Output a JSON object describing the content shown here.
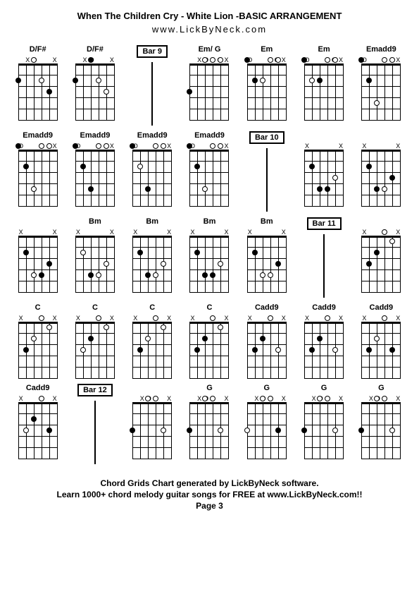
{
  "header": {
    "title": "When The Children Cry - White Lion -BASIC ARRANGEMENT",
    "website": "www.LickByNeck.com"
  },
  "footer": {
    "line1": "Chord Grids Chart generated by LickByNeck software.",
    "line2": "Learn 1000+ chord melody guitar songs for FREE at www.LickByNeck.com!!",
    "page": "Page 3"
  },
  "diagram_config": {
    "width": 56,
    "height": 80,
    "num_frets": 5,
    "num_strings": 6,
    "dot_size": 8,
    "colors": {
      "line": "#000000",
      "dot_fill": "#000000",
      "dot_open_fill": "#ffffff",
      "dot_open_border": "#000000",
      "background": "#ffffff"
    }
  },
  "chords": [
    {
      "type": "chord",
      "name": "D/F#",
      "mutes": [
        "",
        "X",
        "O",
        "",
        "",
        "X"
      ],
      "dots": [
        {
          "s": 0,
          "f": 2,
          "open": false
        },
        {
          "s": 2,
          "f": 0,
          "open": true
        },
        {
          "s": 3,
          "f": 2,
          "open": true
        },
        {
          "s": 4,
          "f": 3,
          "open": false
        }
      ]
    },
    {
      "type": "chord",
      "name": "D/F#",
      "mutes": [
        "",
        "X",
        "O",
        "",
        "",
        "X"
      ],
      "dots": [
        {
          "s": 0,
          "f": 2,
          "open": false
        },
        {
          "s": 2,
          "f": 0,
          "open": false
        },
        {
          "s": 3,
          "f": 2,
          "open": true
        },
        {
          "s": 4,
          "f": 3,
          "open": true
        }
      ]
    },
    {
      "type": "bar",
      "label": "Bar 9"
    },
    {
      "type": "chord",
      "name": "Em/ G",
      "mutes": [
        "",
        "X",
        "O",
        "O",
        "O",
        "X"
      ],
      "dots": [
        {
          "s": 0,
          "f": 3,
          "open": false
        },
        {
          "s": 2,
          "f": 0,
          "open": true
        },
        {
          "s": 3,
          "f": 0,
          "open": true
        },
        {
          "s": 4,
          "f": 0,
          "open": true
        }
      ]
    },
    {
      "type": "chord",
      "name": "Em",
      "mutes": [
        "O",
        "",
        "",
        "O",
        "O",
        "X"
      ],
      "dots": [
        {
          "s": 0,
          "f": 0,
          "open": false
        },
        {
          "s": 1,
          "f": 2,
          "open": false
        },
        {
          "s": 2,
          "f": 2,
          "open": true
        },
        {
          "s": 3,
          "f": 0,
          "open": true
        },
        {
          "s": 4,
          "f": 0,
          "open": true
        }
      ]
    },
    {
      "type": "chord",
      "name": "Em",
      "mutes": [
        "O",
        "",
        "",
        "O",
        "O",
        "X"
      ],
      "dots": [
        {
          "s": 0,
          "f": 0,
          "open": false
        },
        {
          "s": 1,
          "f": 2,
          "open": true
        },
        {
          "s": 2,
          "f": 2,
          "open": false
        },
        {
          "s": 3,
          "f": 0,
          "open": true
        },
        {
          "s": 4,
          "f": 0,
          "open": true
        }
      ]
    },
    {
      "type": "chord",
      "name": "Emadd9",
      "mutes": [
        "O",
        "",
        "",
        "O",
        "",
        "X"
      ],
      "dots": [
        {
          "s": 0,
          "f": 0,
          "open": false
        },
        {
          "s": 1,
          "f": 2,
          "open": false
        },
        {
          "s": 2,
          "f": 4,
          "open": true
        },
        {
          "s": 3,
          "f": 0,
          "open": true
        },
        {
          "s": 4,
          "f": 0,
          "open": true
        }
      ]
    },
    {
      "type": "chord",
      "name": "Emadd9",
      "mutes": [
        "O",
        "",
        "",
        "O",
        "",
        "X"
      ],
      "dots": [
        {
          "s": 0,
          "f": 0,
          "open": false
        },
        {
          "s": 1,
          "f": 2,
          "open": false
        },
        {
          "s": 2,
          "f": 4,
          "open": true
        },
        {
          "s": 3,
          "f": 0,
          "open": true
        },
        {
          "s": 4,
          "f": 0,
          "open": true
        }
      ]
    },
    {
      "type": "chord",
      "name": "Emadd9",
      "mutes": [
        "O",
        "",
        "",
        "O",
        "",
        "X"
      ],
      "dots": [
        {
          "s": 0,
          "f": 0,
          "open": false
        },
        {
          "s": 1,
          "f": 2,
          "open": false
        },
        {
          "s": 2,
          "f": 4,
          "open": false
        },
        {
          "s": 3,
          "f": 0,
          "open": true
        },
        {
          "s": 4,
          "f": 0,
          "open": true
        }
      ]
    },
    {
      "type": "chord",
      "name": "Emadd9",
      "mutes": [
        "O",
        "",
        "",
        "O",
        "",
        "X"
      ],
      "dots": [
        {
          "s": 0,
          "f": 0,
          "open": false
        },
        {
          "s": 1,
          "f": 2,
          "open": true
        },
        {
          "s": 2,
          "f": 4,
          "open": false
        },
        {
          "s": 3,
          "f": 0,
          "open": true
        },
        {
          "s": 4,
          "f": 0,
          "open": true
        }
      ]
    },
    {
      "type": "chord",
      "name": "Emadd9",
      "mutes": [
        "O",
        "",
        "",
        "O",
        "",
        "X"
      ],
      "dots": [
        {
          "s": 0,
          "f": 0,
          "open": false
        },
        {
          "s": 1,
          "f": 2,
          "open": false
        },
        {
          "s": 2,
          "f": 4,
          "open": true
        },
        {
          "s": 3,
          "f": 0,
          "open": true
        },
        {
          "s": 4,
          "f": 0,
          "open": true
        }
      ]
    },
    {
      "type": "bar",
      "label": "Bar 10"
    },
    {
      "type": "chord",
      "name": "",
      "mutes": [
        "X",
        "",
        "",
        "",
        "",
        "X"
      ],
      "dots": [
        {
          "s": 1,
          "f": 2,
          "open": false
        },
        {
          "s": 2,
          "f": 4,
          "open": false
        },
        {
          "s": 3,
          "f": 4,
          "open": false
        },
        {
          "s": 4,
          "f": 3,
          "open": true
        }
      ]
    },
    {
      "type": "chord",
      "name": "",
      "mutes": [
        "X",
        "",
        "",
        "",
        "",
        "X"
      ],
      "dots": [
        {
          "s": 1,
          "f": 2,
          "open": false
        },
        {
          "s": 2,
          "f": 4,
          "open": false
        },
        {
          "s": 3,
          "f": 4,
          "open": true
        },
        {
          "s": 4,
          "f": 3,
          "open": false
        }
      ]
    },
    {
      "type": "chord",
      "name": "",
      "mutes": [
        "X",
        "",
        "",
        "",
        "",
        "X"
      ],
      "dots": [
        {
          "s": 1,
          "f": 2,
          "open": false
        },
        {
          "s": 2,
          "f": 4,
          "open": true
        },
        {
          "s": 3,
          "f": 4,
          "open": false
        },
        {
          "s": 4,
          "f": 3,
          "open": false
        }
      ]
    },
    {
      "type": "chord",
      "name": "Bm",
      "mutes": [
        "X",
        "",
        "",
        "",
        "",
        "X"
      ],
      "dots": [
        {
          "s": 1,
          "f": 2,
          "open": true
        },
        {
          "s": 2,
          "f": 4,
          "open": false
        },
        {
          "s": 3,
          "f": 4,
          "open": true
        },
        {
          "s": 4,
          "f": 3,
          "open": true
        }
      ]
    },
    {
      "type": "chord",
      "name": "Bm",
      "mutes": [
        "X",
        "",
        "",
        "",
        "",
        "X"
      ],
      "dots": [
        {
          "s": 1,
          "f": 2,
          "open": false
        },
        {
          "s": 2,
          "f": 4,
          "open": false
        },
        {
          "s": 3,
          "f": 4,
          "open": true
        },
        {
          "s": 4,
          "f": 3,
          "open": true
        }
      ]
    },
    {
      "type": "chord",
      "name": "Bm",
      "mutes": [
        "X",
        "",
        "",
        "",
        "",
        "X"
      ],
      "dots": [
        {
          "s": 1,
          "f": 2,
          "open": false
        },
        {
          "s": 2,
          "f": 4,
          "open": false
        },
        {
          "s": 3,
          "f": 4,
          "open": false
        },
        {
          "s": 4,
          "f": 3,
          "open": true
        }
      ]
    },
    {
      "type": "chord",
      "name": "Bm",
      "mutes": [
        "X",
        "",
        "",
        "",
        "",
        "X"
      ],
      "dots": [
        {
          "s": 1,
          "f": 2,
          "open": false
        },
        {
          "s": 2,
          "f": 4,
          "open": true
        },
        {
          "s": 3,
          "f": 4,
          "open": true
        },
        {
          "s": 4,
          "f": 3,
          "open": false
        }
      ]
    },
    {
      "type": "bar",
      "label": "Bar 11"
    },
    {
      "type": "chord",
      "name": "",
      "mutes": [
        "X",
        "",
        "",
        "O",
        "",
        "X"
      ],
      "dots": [
        {
          "s": 1,
          "f": 3,
          "open": false
        },
        {
          "s": 2,
          "f": 2,
          "open": false
        },
        {
          "s": 3,
          "f": 0,
          "open": true
        },
        {
          "s": 4,
          "f": 1,
          "open": true
        }
      ]
    },
    {
      "type": "chord",
      "name": "C",
      "mutes": [
        "X",
        "",
        "",
        "O",
        "",
        "X"
      ],
      "dots": [
        {
          "s": 1,
          "f": 3,
          "open": false
        },
        {
          "s": 2,
          "f": 2,
          "open": true
        },
        {
          "s": 3,
          "f": 0,
          "open": true
        },
        {
          "s": 4,
          "f": 1,
          "open": true
        }
      ]
    },
    {
      "type": "chord",
      "name": "C",
      "mutes": [
        "X",
        "",
        "",
        "O",
        "",
        "X"
      ],
      "dots": [
        {
          "s": 1,
          "f": 3,
          "open": true
        },
        {
          "s": 2,
          "f": 2,
          "open": false
        },
        {
          "s": 3,
          "f": 0,
          "open": true
        },
        {
          "s": 4,
          "f": 1,
          "open": true
        }
      ]
    },
    {
      "type": "chord",
      "name": "C",
      "mutes": [
        "X",
        "",
        "",
        "O",
        "",
        "X"
      ],
      "dots": [
        {
          "s": 1,
          "f": 3,
          "open": false
        },
        {
          "s": 2,
          "f": 2,
          "open": true
        },
        {
          "s": 3,
          "f": 0,
          "open": true
        },
        {
          "s": 4,
          "f": 1,
          "open": true
        }
      ]
    },
    {
      "type": "chord",
      "name": "C",
      "mutes": [
        "X",
        "",
        "",
        "O",
        "",
        "X"
      ],
      "dots": [
        {
          "s": 1,
          "f": 3,
          "open": false
        },
        {
          "s": 2,
          "f": 2,
          "open": false
        },
        {
          "s": 3,
          "f": 0,
          "open": true
        },
        {
          "s": 4,
          "f": 1,
          "open": true
        }
      ]
    },
    {
      "type": "chord",
      "name": "Cadd9",
      "mutes": [
        "X",
        "",
        "",
        "O",
        "",
        "X"
      ],
      "dots": [
        {
          "s": 1,
          "f": 3,
          "open": false
        },
        {
          "s": 2,
          "f": 2,
          "open": false
        },
        {
          "s": 3,
          "f": 0,
          "open": true
        },
        {
          "s": 4,
          "f": 3,
          "open": true
        }
      ]
    },
    {
      "type": "chord",
      "name": "Cadd9",
      "mutes": [
        "X",
        "",
        "",
        "O",
        "",
        "X"
      ],
      "dots": [
        {
          "s": 1,
          "f": 3,
          "open": false
        },
        {
          "s": 2,
          "f": 2,
          "open": false
        },
        {
          "s": 3,
          "f": 0,
          "open": true
        },
        {
          "s": 4,
          "f": 3,
          "open": true
        }
      ]
    },
    {
      "type": "chord",
      "name": "Cadd9",
      "mutes": [
        "X",
        "",
        "",
        "O",
        "",
        "X"
      ],
      "dots": [
        {
          "s": 1,
          "f": 3,
          "open": false
        },
        {
          "s": 2,
          "f": 2,
          "open": true
        },
        {
          "s": 3,
          "f": 0,
          "open": true
        },
        {
          "s": 4,
          "f": 3,
          "open": false
        }
      ]
    },
    {
      "type": "chord",
      "name": "Cadd9",
      "mutes": [
        "X",
        "",
        "",
        "O",
        "",
        "X"
      ],
      "dots": [
        {
          "s": 1,
          "f": 3,
          "open": true
        },
        {
          "s": 2,
          "f": 2,
          "open": false
        },
        {
          "s": 3,
          "f": 0,
          "open": true
        },
        {
          "s": 4,
          "f": 3,
          "open": false
        }
      ]
    },
    {
      "type": "bar",
      "label": "Bar 12"
    },
    {
      "type": "chord",
      "name": "",
      "mutes": [
        "",
        "X",
        "O",
        "O",
        "",
        "X"
      ],
      "dots": [
        {
          "s": 0,
          "f": 3,
          "open": false
        },
        {
          "s": 2,
          "f": 0,
          "open": true
        },
        {
          "s": 3,
          "f": 0,
          "open": true
        },
        {
          "s": 4,
          "f": 3,
          "open": true
        }
      ]
    },
    {
      "type": "chord",
      "name": "G",
      "mutes": [
        "",
        "X",
        "O",
        "O",
        "",
        "X"
      ],
      "dots": [
        {
          "s": 0,
          "f": 3,
          "open": false
        },
        {
          "s": 2,
          "f": 0,
          "open": true
        },
        {
          "s": 3,
          "f": 0,
          "open": true
        },
        {
          "s": 4,
          "f": 3,
          "open": true
        }
      ]
    },
    {
      "type": "chord",
      "name": "G",
      "mutes": [
        "",
        "X",
        "O",
        "O",
        "",
        "X"
      ],
      "dots": [
        {
          "s": 0,
          "f": 3,
          "open": true
        },
        {
          "s": 2,
          "f": 0,
          "open": true
        },
        {
          "s": 3,
          "f": 0,
          "open": true
        },
        {
          "s": 4,
          "f": 3,
          "open": false
        }
      ]
    },
    {
      "type": "chord",
      "name": "G",
      "mutes": [
        "",
        "X",
        "O",
        "O",
        "",
        "X"
      ],
      "dots": [
        {
          "s": 0,
          "f": 3,
          "open": false
        },
        {
          "s": 2,
          "f": 0,
          "open": true
        },
        {
          "s": 3,
          "f": 0,
          "open": true
        },
        {
          "s": 4,
          "f": 3,
          "open": true
        }
      ]
    },
    {
      "type": "chord",
      "name": "G",
      "mutes": [
        "",
        "X",
        "O",
        "O",
        "",
        "X"
      ],
      "dots": [
        {
          "s": 0,
          "f": 3,
          "open": false
        },
        {
          "s": 2,
          "f": 0,
          "open": true
        },
        {
          "s": 3,
          "f": 0,
          "open": true
        },
        {
          "s": 4,
          "f": 3,
          "open": true
        }
      ]
    }
  ]
}
